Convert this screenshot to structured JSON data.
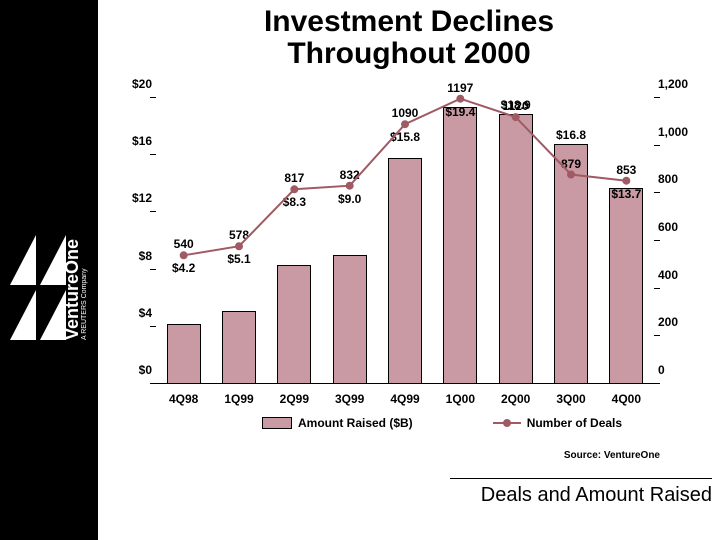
{
  "title_line1": "Investment Declines",
  "title_line2": "Throughout 2000",
  "sidebar": {
    "brand": "VentureOne",
    "tagline": "A REUTERS Company"
  },
  "chart": {
    "type": "bar+line",
    "categories": [
      "4Q98",
      "1Q99",
      "2Q99",
      "3Q99",
      "4Q99",
      "1Q00",
      "2Q00",
      "3Q00",
      "4Q00"
    ],
    "bars": {
      "values": [
        4.2,
        5.1,
        8.3,
        9.0,
        15.8,
        19.4,
        18.9,
        16.8,
        13.7
      ],
      "labels": [
        "$4.2",
        "$5.1",
        "$8.3",
        "$9.0",
        "$15.8",
        "$19.4",
        "$18.9",
        "$16.8",
        "$13.7"
      ],
      "color": "#c99aa3",
      "border_color": "#000000",
      "width_frac": 0.62
    },
    "line": {
      "values": [
        540,
        578,
        817,
        832,
        1090,
        1197,
        1120,
        879,
        853
      ],
      "labels": [
        "540",
        "578",
        "817",
        "832",
        "1090",
        "1197",
        "1120",
        "879",
        "853"
      ],
      "color": "#a05a64",
      "stroke_width": 2,
      "marker_radius": 4
    },
    "y_left": {
      "min": 0,
      "max": 20,
      "ticks": [
        0,
        4,
        8,
        12,
        16,
        20
      ],
      "tick_labels": [
        "$0",
        "$4",
        "$8",
        "$12",
        "$16",
        "$20"
      ]
    },
    "y_right": {
      "min": 0,
      "max": 1200,
      "ticks": [
        0,
        200,
        400,
        600,
        800,
        1000,
        1200
      ],
      "tick_labels": [
        "0",
        "200",
        "400",
        "600",
        "800",
        "1,000",
        "1,200"
      ]
    },
    "legend": {
      "bar_label": "Amount Raised ($B)",
      "line_label": "Number of Deals"
    },
    "background": "#ffffff"
  },
  "source": "Source: VentureOne",
  "footer": "Deals and Amount Raised"
}
